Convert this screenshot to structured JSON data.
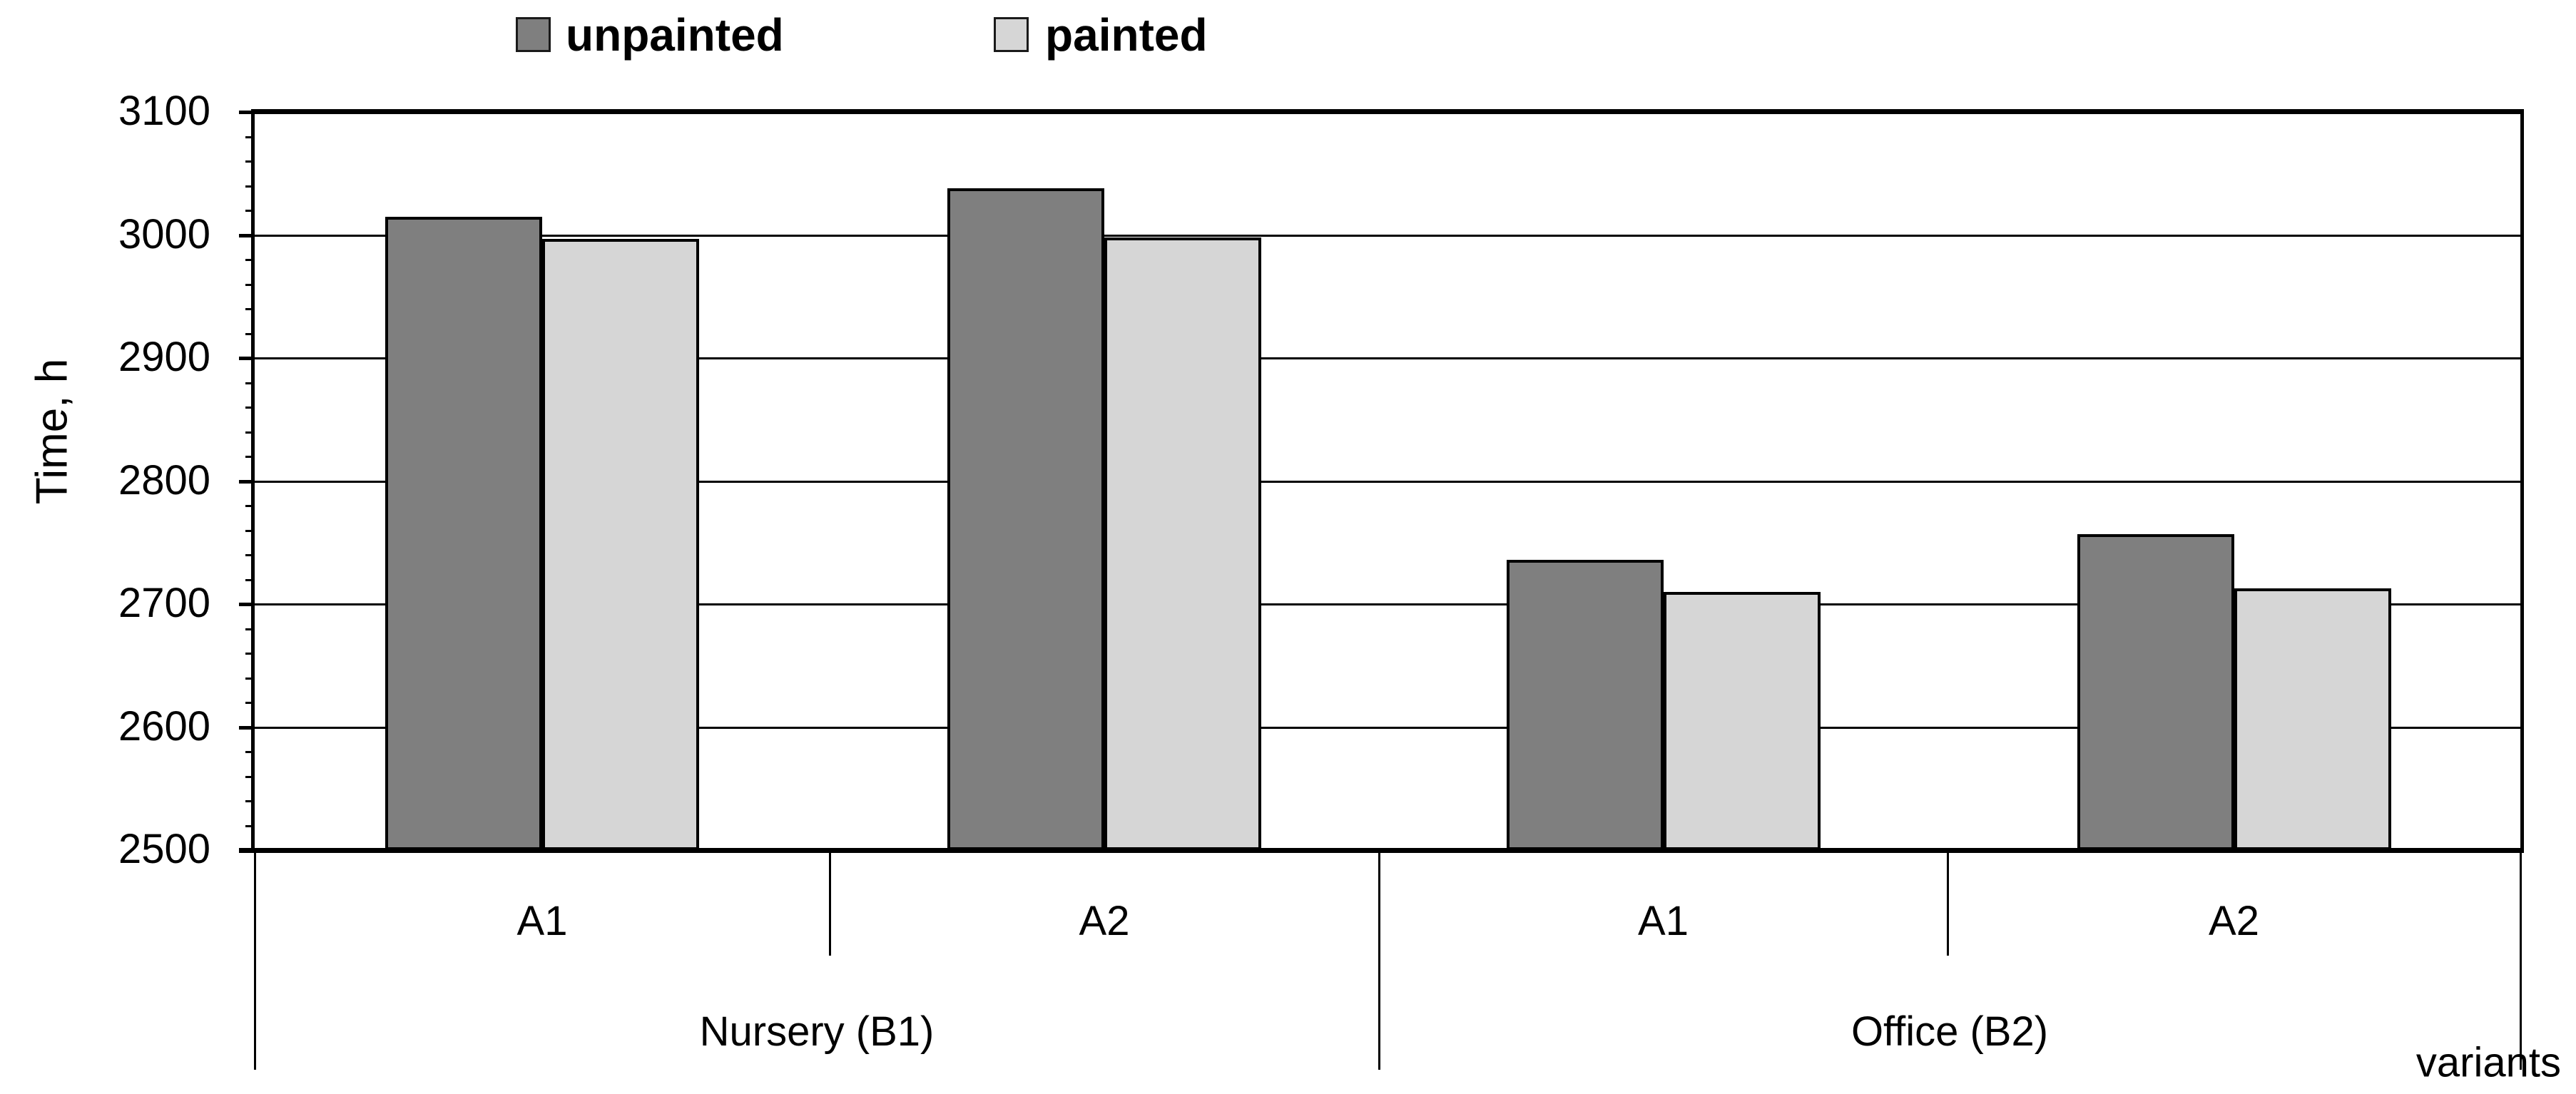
{
  "chart_data": {
    "type": "bar",
    "title": "",
    "ylabel": "Time, h",
    "xlabel": "variants",
    "ylim": [
      2500,
      3100
    ],
    "ytick_step": 100,
    "y_minor_tick_step": 20,
    "ytick_labels": [
      "2500",
      "2600",
      "2700",
      "2800",
      "2900",
      "3000",
      "3100"
    ],
    "grid": true,
    "legend_position": "top",
    "groups": [
      {
        "label": "Nursery (B1)",
        "categories": [
          "A1",
          "A2"
        ]
      },
      {
        "label": "Office (B2)",
        "categories": [
          "A1",
          "A2"
        ]
      }
    ],
    "series": [
      {
        "name": "unpainted",
        "color": "#7f7f7f",
        "values": [
          3015,
          3038,
          2736,
          2757
        ]
      },
      {
        "name": "painted",
        "color": "#d6d6d6",
        "values": [
          2997,
          2998,
          2710,
          2713
        ]
      }
    ]
  },
  "colors": {
    "axis": "#000000",
    "bar_border": "#000000",
    "background": "#ffffff"
  }
}
